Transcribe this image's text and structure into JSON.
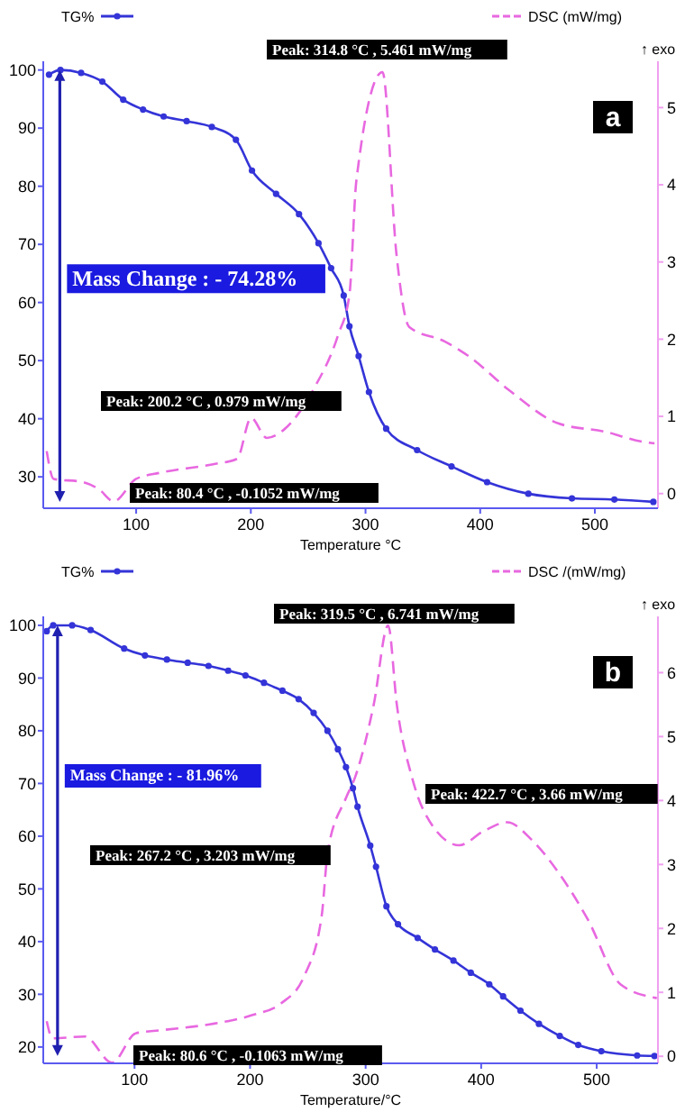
{
  "chart_data": [
    {
      "type": "line",
      "xlabel": "Temperature °C",
      "legend": "top",
      "marker": "circle",
      "xlim": [
        19,
        555
      ],
      "xticks": [
        100,
        200,
        300,
        400,
        500
      ],
      "ylim": [
        24.6,
        101.5
      ],
      "yticks": [
        30,
        40,
        50,
        60,
        70,
        80,
        90,
        100
      ],
      "y2lim": [
        -0.19,
        5.6
      ],
      "y2ticks": [
        0,
        1,
        2,
        3,
        4,
        5
      ],
      "grid": false,
      "series": [
        {
          "name": "TG%",
          "color": "#3434d8",
          "line_style": "solid",
          "x": [
            24,
            34,
            52,
            70.5,
            88.7,
            106,
            124,
            144,
            166,
            187,
            201,
            222,
            242,
            259,
            270,
            281,
            286,
            294,
            303,
            318,
            345,
            375,
            406,
            442,
            480,
            517,
            551
          ],
          "values": [
            99.2,
            100,
            99.5,
            98,
            94.9,
            93.2,
            92,
            91.2,
            90.2,
            88,
            82.7,
            78.7,
            75.2,
            70.2,
            65.9,
            61.2,
            55.9,
            50.8,
            44.6,
            38.3,
            34.6,
            31.8,
            29.1,
            27.1,
            26.3,
            26.1,
            25.7
          ]
        },
        {
          "name": "DSC  (mW/mg)",
          "color": "#e868e0",
          "axis": "y2",
          "marker": "none",
          "line_style": "dashed",
          "x": [
            22,
            28,
            53,
            68,
            80.4,
            100,
            121,
            167,
            188,
            200.2,
            214,
            229,
            255,
            276,
            286,
            292,
            314.8,
            327,
            338,
            369,
            390,
            426,
            468,
            509,
            542,
            552
          ],
          "values": [
            0.55,
            0.19,
            0.15,
            0.05,
            -0.1,
            0.19,
            0.27,
            0.38,
            0.45,
            0.98,
            0.72,
            0.83,
            1.36,
            2.05,
            2.58,
            4.05,
            5.46,
            3.1,
            2.16,
            1.97,
            1.78,
            1.33,
            0.91,
            0.8,
            0.67,
            0.65
          ]
        }
      ],
      "annotations": [
        "Mass Change : - 74.28%",
        "↑ exo",
        "a",
        "Peak: 314.8 °C , 5.461 mW/mg",
        "Peak: 200.2 °C , 0.979 mW/mg",
        "Peak: 80.4 °C , -0.1052 mW/mg"
      ]
    },
    {
      "type": "line",
      "xlabel": "Temperature/°C",
      "legend": "top",
      "marker": "circle",
      "xlim": [
        21,
        553
      ],
      "xticks": [
        100,
        200,
        300,
        400,
        500
      ],
      "ylim": [
        16.9,
        101.7
      ],
      "yticks": [
        20,
        30,
        40,
        50,
        60,
        70,
        80,
        90,
        100
      ],
      "y2lim": [
        -0.11,
        6.88
      ],
      "y2ticks": [
        0,
        1,
        2,
        3,
        4,
        5,
        6
      ],
      "grid": false,
      "series": [
        {
          "name": "TG%",
          "color": "#3434d8",
          "line_style": "solid",
          "x": [
            24,
            29.6,
            46,
            62,
            91,
            109,
            128,
            146,
            164,
            181,
            196,
            212,
            228,
            242,
            255,
            267,
            276,
            283,
            289,
            293,
            304,
            309,
            318,
            328,
            345,
            360,
            376,
            391,
            407,
            419,
            434,
            450,
            468,
            484,
            504,
            535,
            550
          ],
          "values": [
            98.9,
            100,
            100,
            99.1,
            95.6,
            94.3,
            93.5,
            92.9,
            92.3,
            91.4,
            90.5,
            89.1,
            87.6,
            86,
            83.4,
            80,
            76.5,
            73.1,
            69.1,
            65.6,
            58.2,
            54.2,
            46.7,
            43.3,
            40.7,
            38.5,
            36.4,
            34.1,
            31.9,
            29.6,
            26.9,
            24.4,
            22.1,
            20.4,
            19.2,
            18.4,
            18.3
          ]
        },
        {
          "name": "DSC /(mW/mg)",
          "color": "#e868e0",
          "axis": "y2",
          "marker": "none",
          "line_style": "dashed",
          "x": [
            24,
            29,
            57,
            80.6,
            101,
            124,
            165,
            201,
            227,
            247,
            262,
            267.2,
            283,
            291,
            307,
            319.5,
            327,
            340,
            350,
            381,
            402,
            422.7,
            444,
            469,
            492,
            521,
            552
          ],
          "values": [
            0.55,
            0.28,
            0.31,
            -0.1,
            0.36,
            0.41,
            0.5,
            0.64,
            0.83,
            1.26,
            2.2,
            3.2,
            4.04,
            4.37,
            5.5,
            6.74,
            5.5,
            4.37,
            3.85,
            3.3,
            3.52,
            3.66,
            3.38,
            2.82,
            2.15,
            1.12,
            0.91
          ]
        }
      ],
      "annotations": [
        "Mass Change : - 81.96%",
        "↑ exo",
        "b",
        "Peak: 319.5 °C , 6.741 mW/mg",
        "Peak: 267.2 °C , 3.203 mW/mg",
        "Peak: 422.7 °C , 3.66 mW/mg",
        "Peak: 80.6 °C , -0.1063 mW/mg"
      ]
    }
  ]
}
